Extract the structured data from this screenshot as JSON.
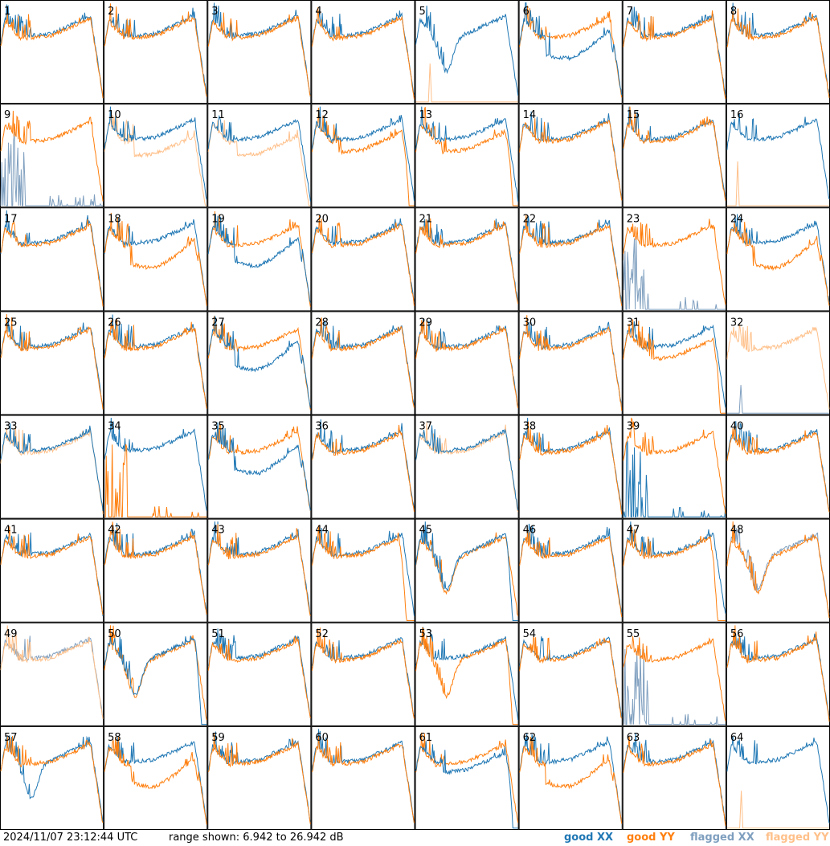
{
  "footer": {
    "timestamp": "2024/11/07 23:12:44 UTC",
    "range": "range shown: 6.942 to 26.942 dB"
  },
  "legend": [
    {
      "label": "good XX",
      "color": "#1f77b4"
    },
    {
      "label": "good YY",
      "color": "#ff7f0e"
    },
    {
      "label": "flagged XX",
      "color": "#7f9fbf"
    },
    {
      "label": "flagged YY",
      "color": "#ffc08a"
    }
  ],
  "chart_data": {
    "type": "line",
    "layout": "8x8 small multiples",
    "ylim": [
      6.942,
      26.942
    ],
    "units": "dB",
    "series_names": [
      "good XX",
      "good YY",
      "flagged XX",
      "flagged YY"
    ],
    "panels": [
      {
        "id": "1",
        "xx": "normal",
        "yy": "normal",
        "order": "yy"
      },
      {
        "id": "2",
        "xx": "normal",
        "yy": "normal",
        "order": "yy"
      },
      {
        "id": "3",
        "xx": "normal",
        "yy": "normal",
        "order": "yy"
      },
      {
        "id": "4",
        "xx": "normal",
        "yy": "normal",
        "order": "yy"
      },
      {
        "id": "5",
        "xx": "dip",
        "yy": "flaggedSpike"
      },
      {
        "id": "6",
        "xx": "lowCurve",
        "yy": "normal",
        "order": "xx"
      },
      {
        "id": "7",
        "xx": "normal",
        "yy": "normal",
        "order": "yy"
      },
      {
        "id": "8",
        "xx": "normal",
        "yy": "normal",
        "order": "yy"
      },
      {
        "id": "9",
        "xx": "flaggedSpikes",
        "yy": "normal"
      },
      {
        "id": "10",
        "xx": "normal",
        "yy": "flaggedLow"
      },
      {
        "id": "11",
        "xx": "normal",
        "yy": "flaggedLow"
      },
      {
        "id": "12",
        "xx": "normal",
        "yy": "lowDrop",
        "order": "xx"
      },
      {
        "id": "13",
        "xx": "normal",
        "yy": "lowDrop",
        "order": "xx"
      },
      {
        "id": "14",
        "xx": "normal",
        "yy": "normal",
        "order": "yy"
      },
      {
        "id": "15",
        "xx": "normal",
        "yy": "normal",
        "order": "yy"
      },
      {
        "id": "16",
        "xx": "normal",
        "yy": "flaggedSpike"
      },
      {
        "id": "17",
        "xx": "normal",
        "yy": "normal",
        "order": "yy"
      },
      {
        "id": "18",
        "xx": "normal",
        "yy": "lowCurve",
        "order": "yy"
      },
      {
        "id": "19",
        "xx": "lowCurve",
        "yy": "normal",
        "order": "xx"
      },
      {
        "id": "20",
        "xx": "normal",
        "yy": "normal",
        "order": "yy"
      },
      {
        "id": "21",
        "xx": "normal",
        "yy": "normal",
        "order": "yy"
      },
      {
        "id": "22",
        "xx": "normal",
        "yy": "normal",
        "order": "yy"
      },
      {
        "id": "23",
        "xx": "flaggedSpikes",
        "yy": "normal"
      },
      {
        "id": "24",
        "xx": "normal",
        "yy": "lowCurve",
        "order": "yy"
      },
      {
        "id": "25",
        "xx": "normal",
        "yy": "normal",
        "order": "yy"
      },
      {
        "id": "26",
        "xx": "normal",
        "yy": "normal",
        "order": "yy"
      },
      {
        "id": "27",
        "xx": "lowCurve",
        "yy": "normal",
        "order": "xx"
      },
      {
        "id": "28",
        "xx": "normal",
        "yy": "normal",
        "order": "yy"
      },
      {
        "id": "29",
        "xx": "normal",
        "yy": "normal",
        "order": "yy"
      },
      {
        "id": "30",
        "xx": "normal",
        "yy": "normal",
        "order": "yy"
      },
      {
        "id": "31",
        "xx": "normal",
        "yy": "lowDrop",
        "order": "yy"
      },
      {
        "id": "32",
        "xx": "flaggedSpike",
        "yy": "flaggedNormal"
      },
      {
        "id": "33",
        "xx": "normal",
        "yy": "flaggedNormal"
      },
      {
        "id": "34",
        "xx": "normal",
        "yy": "spikes"
      },
      {
        "id": "35",
        "xx": "lowCurve",
        "yy": "normal",
        "order": "xx"
      },
      {
        "id": "36",
        "xx": "normal",
        "yy": "normal",
        "order": "yy"
      },
      {
        "id": "37",
        "xx": "normal",
        "yy": "flaggedNormal"
      },
      {
        "id": "38",
        "xx": "normal",
        "yy": "normal",
        "order": "yy"
      },
      {
        "id": "39",
        "xx": "spikes",
        "yy": "normal"
      },
      {
        "id": "40",
        "xx": "normal",
        "yy": "normal",
        "order": "yy"
      },
      {
        "id": "41",
        "xx": "normal",
        "yy": "normal",
        "order": "yy"
      },
      {
        "id": "42",
        "xx": "normal",
        "yy": "normal",
        "order": "yy"
      },
      {
        "id": "43",
        "xx": "normal",
        "yy": "normal",
        "order": "yy"
      },
      {
        "id": "44",
        "xx": "normal",
        "yy": "drop",
        "order": "yy"
      },
      {
        "id": "45",
        "xx": "dropDip",
        "yy": "dip",
        "order": "xx"
      },
      {
        "id": "46",
        "xx": "normal",
        "yy": "normal",
        "order": "yy"
      },
      {
        "id": "47",
        "xx": "normal",
        "yy": "drop",
        "order": "yy"
      },
      {
        "id": "48",
        "xx": "flaggedDip",
        "yy": "dip"
      },
      {
        "id": "49",
        "xx": "flaggedNormal",
        "yy": "flaggedNormal"
      },
      {
        "id": "50",
        "xx": "dropDip",
        "yy": "dip",
        "order": "xx"
      },
      {
        "id": "51",
        "xx": "normal",
        "yy": "normal",
        "order": "yy"
      },
      {
        "id": "52",
        "xx": "normal",
        "yy": "normal",
        "order": "yy"
      },
      {
        "id": "53",
        "xx": "normal",
        "yy": "dropDip",
        "order": "yy"
      },
      {
        "id": "54",
        "xx": "normal",
        "yy": "normal",
        "order": "yy"
      },
      {
        "id": "55",
        "xx": "flaggedSpikes",
        "yy": "normal"
      },
      {
        "id": "56",
        "xx": "normal",
        "yy": "normal",
        "order": "yy"
      },
      {
        "id": "57",
        "xx": "dip",
        "yy": "normal",
        "order": "yy"
      },
      {
        "id": "58",
        "xx": "normal",
        "yy": "lowCurve",
        "order": "yy"
      },
      {
        "id": "59",
        "xx": "normal",
        "yy": "normal",
        "order": "yy"
      },
      {
        "id": "60",
        "xx": "normal",
        "yy": "normal",
        "order": "yy"
      },
      {
        "id": "61",
        "xx": "lowDrop",
        "yy": "normal",
        "order": "xx"
      },
      {
        "id": "62",
        "xx": "normal",
        "yy": "lowCurve",
        "order": "yy"
      },
      {
        "id": "63",
        "xx": "normal",
        "yy": "normal",
        "order": "yy"
      },
      {
        "id": "64",
        "xx": "normal",
        "yy": "flaggedSpike"
      }
    ]
  }
}
